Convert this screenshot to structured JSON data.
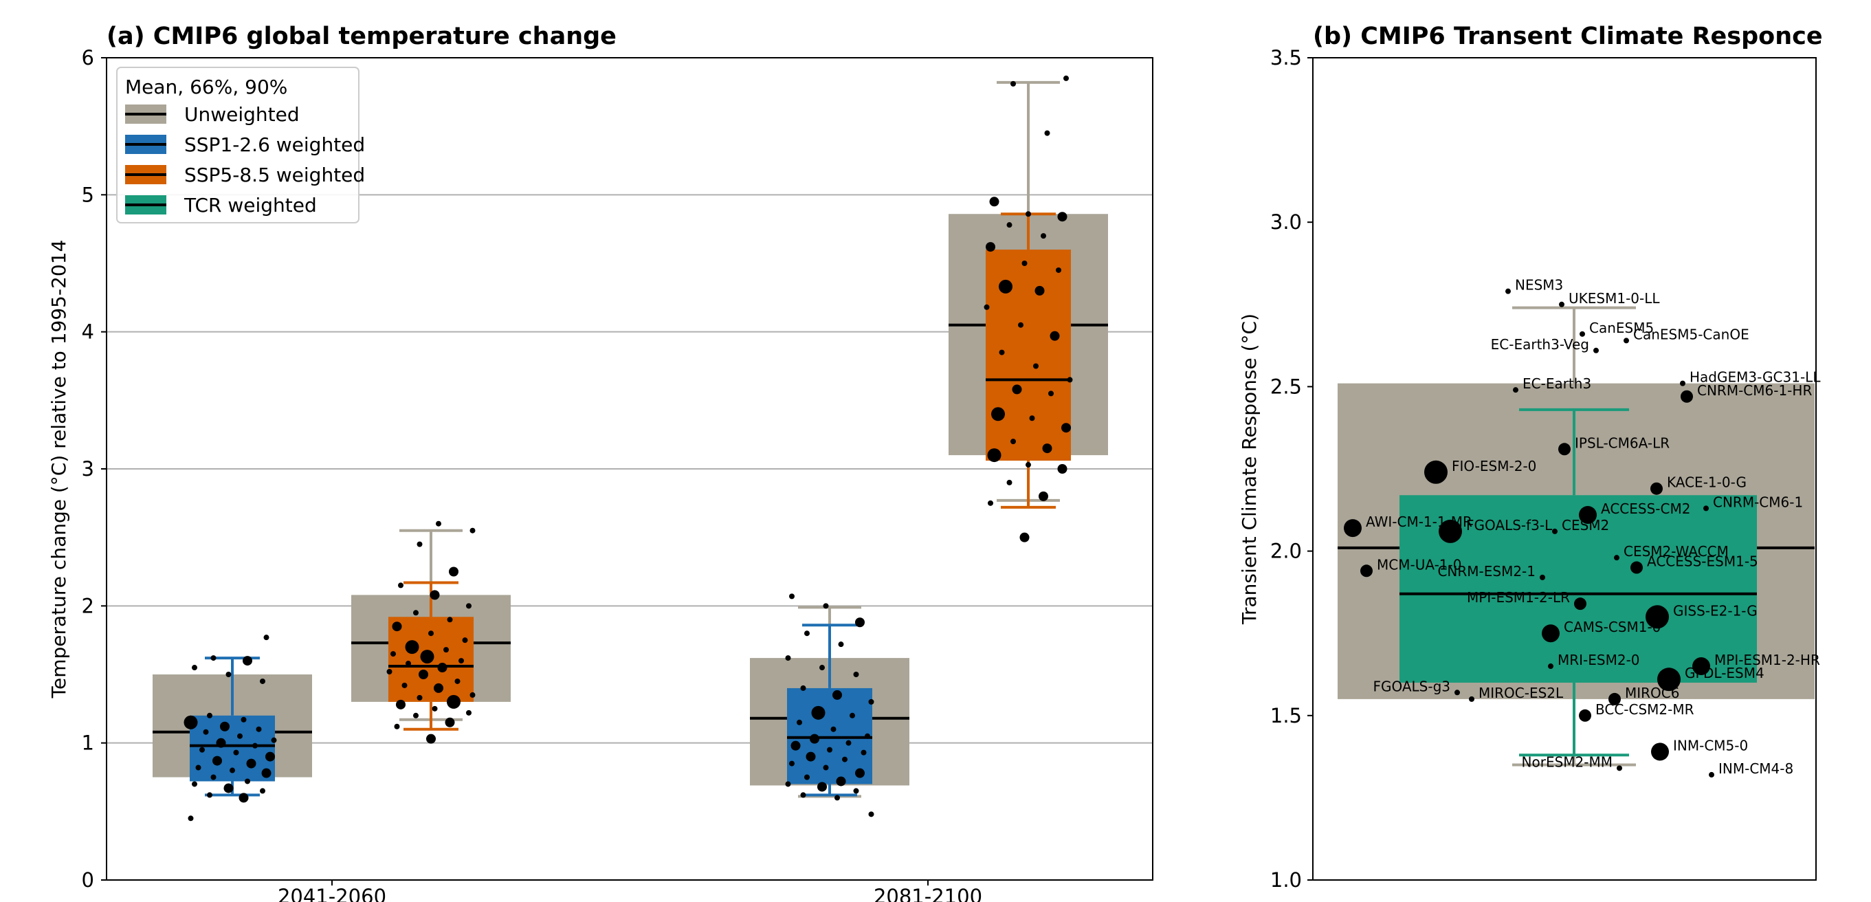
{
  "chart_data": [
    {
      "type": "box",
      "title": "(a) CMIP6 global temperature change",
      "xlabel": "",
      "ylabel": "Temperature change (°C) relative to 1995-2014",
      "ylim": [
        0,
        6
      ],
      "yticks": [
        "0",
        "1",
        "2",
        "3",
        "4",
        "5",
        "6"
      ],
      "categories": [
        "2041-2060",
        "2081-2100"
      ],
      "grid": "horizontal",
      "legend": {
        "position": "top-left",
        "title": "Mean, 66%, 90%",
        "entries": [
          {
            "label": "Unweighted",
            "color": "#aaa597"
          },
          {
            "label": "SSP1-2.6 weighted",
            "color": "#1f6fb2"
          },
          {
            "label": "SSP5-8.5 weighted",
            "color": "#d35f00"
          },
          {
            "label": "TCR weighted",
            "color": "#1a9b7b"
          }
        ]
      },
      "series": [
        {
          "name": "Unweighted",
          "period": "2041-2060",
          "scenario": "SSP1-2.6",
          "mean": 1.08,
          "q17": 0.75,
          "q83": 1.5,
          "q05": null,
          "q95": null,
          "color": "#aaa597"
        },
        {
          "name": "SSP1-2.6 weighted",
          "period": "2041-2060",
          "mean": 0.98,
          "q17": 0.72,
          "q83": 1.2,
          "q05": 0.62,
          "q95": 1.62,
          "color": "#1f6fb2"
        },
        {
          "name": "Unweighted",
          "period": "2041-2060",
          "scenario": "SSP5-8.5",
          "mean": 1.73,
          "q17": 1.3,
          "q83": 2.08,
          "q05": 1.17,
          "q95": 2.55,
          "color": "#aaa597"
        },
        {
          "name": "SSP5-8.5 weighted",
          "period": "2041-2060",
          "mean": 1.56,
          "q17": 1.3,
          "q83": 1.92,
          "q05": 1.1,
          "q95": 2.17,
          "color": "#d35f00"
        },
        {
          "name": "Unweighted",
          "period": "2081-2100",
          "scenario": "SSP1-2.6",
          "mean": 1.18,
          "q17": 0.69,
          "q83": 1.62,
          "q05": 0.61,
          "q95": 1.99,
          "color": "#aaa597"
        },
        {
          "name": "SSP1-2.6 weighted",
          "period": "2081-2100",
          "mean": 1.04,
          "q17": 0.7,
          "q83": 1.4,
          "q05": 0.62,
          "q95": 1.86,
          "color": "#1f6fb2"
        },
        {
          "name": "Unweighted",
          "period": "2081-2100",
          "scenario": "SSP5-8.5",
          "mean": 4.05,
          "q17": 3.1,
          "q83": 4.86,
          "q05": 2.77,
          "q95": 5.82,
          "color": "#aaa597"
        },
        {
          "name": "SSP5-8.5 weighted",
          "period": "2081-2100",
          "mean": 3.65,
          "q17": 3.06,
          "q83": 4.6,
          "q05": 2.72,
          "q95": 4.86,
          "color": "#d35f00"
        }
      ],
      "points": [
        {
          "group": 0,
          "values": [
            [
              0.45,
              1
            ],
            [
              0.6,
              2
            ],
            [
              0.62,
              1
            ],
            [
              0.65,
              1
            ],
            [
              0.67,
              2
            ],
            [
              0.7,
              1
            ],
            [
              0.72,
              1
            ],
            [
              0.75,
              1
            ],
            [
              0.78,
              2
            ],
            [
              0.8,
              1
            ],
            [
              0.82,
              1
            ],
            [
              0.85,
              2
            ],
            [
              0.87,
              2
            ],
            [
              0.9,
              2
            ],
            [
              0.93,
              1
            ],
            [
              0.95,
              1
            ],
            [
              0.98,
              1
            ],
            [
              1.0,
              2
            ],
            [
              1.02,
              1
            ],
            [
              1.05,
              1
            ],
            [
              1.08,
              1
            ],
            [
              1.1,
              1
            ],
            [
              1.12,
              2
            ],
            [
              1.15,
              3
            ],
            [
              1.17,
              1
            ],
            [
              1.2,
              1
            ],
            [
              1.45,
              1
            ],
            [
              1.5,
              1
            ],
            [
              1.55,
              1
            ],
            [
              1.6,
              2
            ],
            [
              1.62,
              1
            ],
            [
              1.77,
              1
            ]
          ]
        },
        {
          "group": 1,
          "values": [
            [
              1.03,
              2
            ],
            [
              1.12,
              1
            ],
            [
              1.15,
              2
            ],
            [
              1.2,
              1
            ],
            [
              1.22,
              1
            ],
            [
              1.25,
              1
            ],
            [
              1.28,
              2
            ],
            [
              1.3,
              3
            ],
            [
              1.33,
              1
            ],
            [
              1.35,
              1
            ],
            [
              1.4,
              2
            ],
            [
              1.42,
              1
            ],
            [
              1.45,
              1
            ],
            [
              1.5,
              2
            ],
            [
              1.52,
              1
            ],
            [
              1.55,
              2
            ],
            [
              1.58,
              1
            ],
            [
              1.6,
              1
            ],
            [
              1.63,
              3
            ],
            [
              1.65,
              1
            ],
            [
              1.68,
              1
            ],
            [
              1.7,
              3
            ],
            [
              1.75,
              1
            ],
            [
              1.8,
              1
            ],
            [
              1.85,
              2
            ],
            [
              1.9,
              1
            ],
            [
              1.95,
              1
            ],
            [
              2.0,
              1
            ],
            [
              2.08,
              2
            ],
            [
              2.15,
              1
            ],
            [
              2.25,
              2
            ],
            [
              2.45,
              1
            ],
            [
              2.55,
              1
            ],
            [
              2.6,
              1
            ]
          ]
        },
        {
          "group": 2,
          "values": [
            [
              0.48,
              1
            ],
            [
              0.6,
              1
            ],
            [
              0.62,
              1
            ],
            [
              0.65,
              1
            ],
            [
              0.68,
              2
            ],
            [
              0.7,
              1
            ],
            [
              0.72,
              2
            ],
            [
              0.75,
              1
            ],
            [
              0.78,
              2
            ],
            [
              0.82,
              1
            ],
            [
              0.85,
              1
            ],
            [
              0.88,
              1
            ],
            [
              0.9,
              2
            ],
            [
              0.93,
              1
            ],
            [
              0.95,
              1
            ],
            [
              0.98,
              2
            ],
            [
              1.0,
              1
            ],
            [
              1.03,
              2
            ],
            [
              1.05,
              1
            ],
            [
              1.1,
              1
            ],
            [
              1.15,
              1
            ],
            [
              1.2,
              1
            ],
            [
              1.22,
              3
            ],
            [
              1.3,
              1
            ],
            [
              1.35,
              2
            ],
            [
              1.4,
              1
            ],
            [
              1.5,
              1
            ],
            [
              1.55,
              1
            ],
            [
              1.62,
              1
            ],
            [
              1.72,
              1
            ],
            [
              1.8,
              1
            ],
            [
              1.88,
              2
            ],
            [
              2.0,
              1
            ],
            [
              2.07,
              1
            ]
          ]
        },
        {
          "group": 3,
          "values": [
            [
              2.5,
              2
            ],
            [
              2.75,
              1
            ],
            [
              2.8,
              2
            ],
            [
              2.9,
              1
            ],
            [
              3.0,
              2
            ],
            [
              3.03,
              1
            ],
            [
              3.1,
              3
            ],
            [
              3.15,
              2
            ],
            [
              3.2,
              1
            ],
            [
              3.3,
              2
            ],
            [
              3.37,
              1
            ],
            [
              3.4,
              3
            ],
            [
              3.55,
              1
            ],
            [
              3.58,
              2
            ],
            [
              3.65,
              1
            ],
            [
              3.75,
              1
            ],
            [
              3.85,
              1
            ],
            [
              3.97,
              2
            ],
            [
              4.05,
              1
            ],
            [
              4.18,
              1
            ],
            [
              4.3,
              2
            ],
            [
              4.33,
              3
            ],
            [
              4.45,
              1
            ],
            [
              4.5,
              1
            ],
            [
              4.62,
              2
            ],
            [
              4.7,
              1
            ],
            [
              4.78,
              1
            ],
            [
              4.84,
              2
            ],
            [
              4.86,
              1
            ],
            [
              4.95,
              2
            ],
            [
              5.45,
              1
            ],
            [
              5.81,
              1
            ],
            [
              5.85,
              1
            ]
          ]
        }
      ]
    },
    {
      "type": "box",
      "title": "(b) CMIP6 Transent Climate Responce",
      "xlabel": "",
      "ylabel": "Transient Climate Response (°C)",
      "ylim": [
        1.0,
        3.5
      ],
      "yticks": [
        "1.0",
        "1.5",
        "2.0",
        "2.5",
        "3.0",
        "3.5"
      ],
      "grid": "none",
      "series": [
        {
          "name": "Unweighted",
          "mean": 2.01,
          "q17": 1.55,
          "q83": 2.51,
          "q05": 1.35,
          "q95": 2.74,
          "color": "#aaa597"
        },
        {
          "name": "TCR weighted",
          "mean": 1.87,
          "q17": 1.6,
          "q83": 2.17,
          "q05": 1.38,
          "q95": 2.43,
          "color": "#1a9b7b"
        }
      ],
      "models": [
        {
          "name": "NESM3",
          "value": 2.79,
          "size": 1
        },
        {
          "name": "UKESM1-0-LL",
          "value": 2.75,
          "size": 1
        },
        {
          "name": "CanESM5",
          "value": 2.66,
          "size": 1
        },
        {
          "name": "CanESM5-CanOE",
          "value": 2.64,
          "size": 1
        },
        {
          "name": "EC-Earth3-Veg",
          "value": 2.61,
          "size": 1
        },
        {
          "name": "HadGEM3-GC31-LL",
          "value": 2.51,
          "size": 1
        },
        {
          "name": "EC-Earth3",
          "value": 2.49,
          "size": 1
        },
        {
          "name": "CNRM-CM6-1-HR",
          "value": 2.47,
          "size": 2
        },
        {
          "name": "IPSL-CM6A-LR",
          "value": 2.31,
          "size": 2
        },
        {
          "name": "FIO-ESM-2-0",
          "value": 2.24,
          "size": 4
        },
        {
          "name": "KACE-1-0-G",
          "value": 2.19,
          "size": 2
        },
        {
          "name": "CNRM-CM6-1",
          "value": 2.13,
          "size": 1
        },
        {
          "name": "ACCESS-CM2",
          "value": 2.11,
          "size": 3
        },
        {
          "name": "AWI-CM-1-1-MR",
          "value": 2.07,
          "size": 3
        },
        {
          "name": "FGOALS-f3-L",
          "value": 2.06,
          "size": 4
        },
        {
          "name": "CESM2",
          "value": 2.06,
          "size": 1
        },
        {
          "name": "CESM2-WACCM",
          "value": 1.98,
          "size": 1
        },
        {
          "name": "MCM-UA-1-0",
          "value": 1.94,
          "size": 2
        },
        {
          "name": "CNRM-ESM2-1",
          "value": 1.92,
          "size": 1
        },
        {
          "name": "ACCESS-ESM1-5",
          "value": 1.95,
          "size": 2
        },
        {
          "name": "MPI-ESM1-2-LR",
          "value": 1.84,
          "size": 2
        },
        {
          "name": "GISS-E2-1-G",
          "value": 1.8,
          "size": 4
        },
        {
          "name": "CAMS-CSM1-0",
          "value": 1.75,
          "size": 3
        },
        {
          "name": "MRI-ESM2-0",
          "value": 1.65,
          "size": 1
        },
        {
          "name": "MPI-ESM1-2-HR",
          "value": 1.65,
          "size": 3
        },
        {
          "name": "GFDL-ESM4",
          "value": 1.61,
          "size": 4
        },
        {
          "name": "FGOALS-g3",
          "value": 1.57,
          "size": 1
        },
        {
          "name": "MIROC-ES2L",
          "value": 1.55,
          "size": 1
        },
        {
          "name": "MIROC6",
          "value": 1.55,
          "size": 2
        },
        {
          "name": "BCC-CSM2-MR",
          "value": 1.5,
          "size": 2
        },
        {
          "name": "INM-CM5-0",
          "value": 1.39,
          "size": 3
        },
        {
          "name": "NorESM2-MM",
          "value": 1.34,
          "size": 1
        },
        {
          "name": "INM-CM4-8",
          "value": 1.32,
          "size": 1
        }
      ]
    }
  ]
}
